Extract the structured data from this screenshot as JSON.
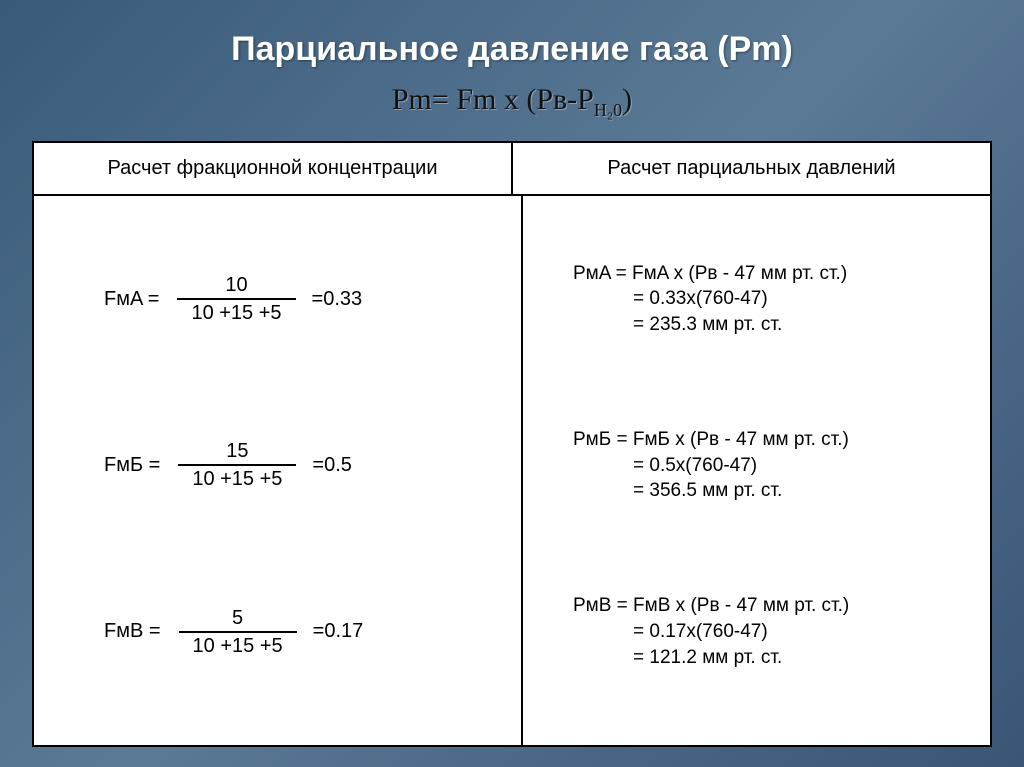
{
  "colors": {
    "bg_gradient_from": "#3a5a7a",
    "bg_gradient_to": "#3a5575",
    "panel_bg": "#ffffff",
    "border": "#000000",
    "title_text": "#ffffff",
    "body_text": "#000000"
  },
  "typography": {
    "title_fontsize_pt": 26,
    "title_weight": "bold",
    "formula_fontsize_pt": 22,
    "formula_family": "Times New Roman",
    "header_fontsize_pt": 15,
    "body_fontsize_pt": 15
  },
  "title": "Парциальное давление газа (Pm)",
  "main_formula": {
    "lhs": "Pm",
    "rhs_factor": "Fm",
    "op": "x",
    "paren": "(Рв-Р",
    "sub": "Н₂0",
    "close": ")"
  },
  "table": {
    "headers": {
      "left": "Расчет фракционной концентрации",
      "right": "Расчет парциальных давлений"
    },
    "left_rows": [
      {
        "lhs": "FмA =",
        "num": "10",
        "den": "10 +15 +5",
        "rhs": "=0.33"
      },
      {
        "lhs": "FмБ =",
        "num": "15",
        "den": "10 +15 +5",
        "rhs": "=0.5"
      },
      {
        "lhs": "FмB =",
        "num": "5",
        "den": "10 +15 +5",
        "rhs": "=0.17"
      }
    ],
    "right_rows": [
      {
        "l1": "PмA = FмA x (Pв - 47 мм рт. ст.)",
        "l2": "= 0.33x(760-47)",
        "l3": "= 235.3 мм рт. ст."
      },
      {
        "l1": "PмБ = FмБ x (Pв - 47 мм рт. ст.)",
        "l2": "= 0.5x(760-47)",
        "l3": "= 356.5 мм рт. ст."
      },
      {
        "l1": "PмB = FмB x (Pв - 47 мм рт. ст.)",
        "l2": "= 0.17x(760-47)",
        "l3": "= 121.2 мм рт. ст."
      }
    ]
  }
}
